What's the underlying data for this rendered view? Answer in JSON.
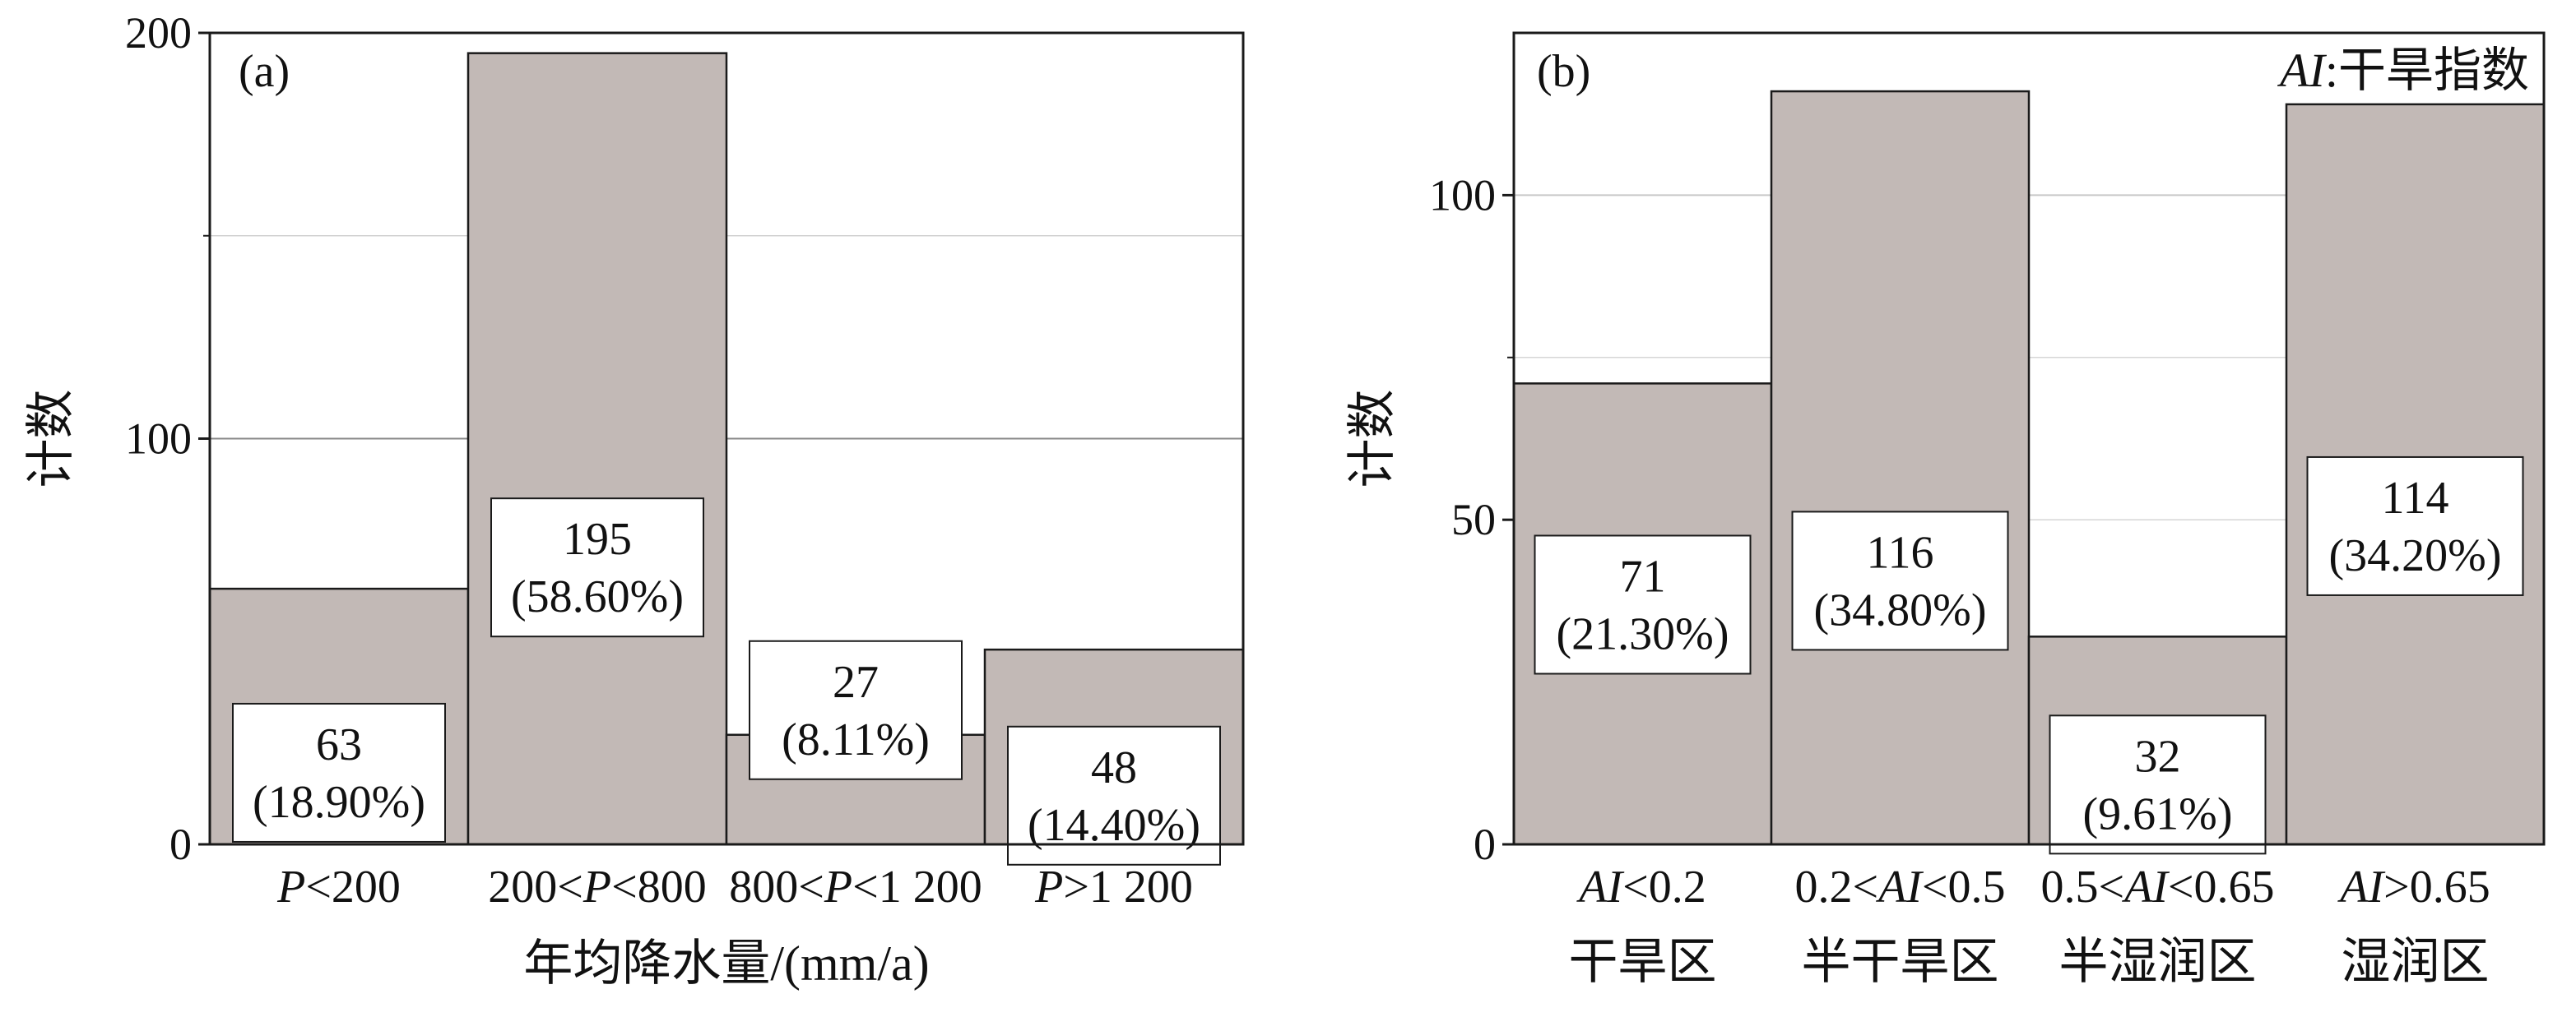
{
  "chart_data": [
    {
      "type": "bar",
      "panel_label": "(a)",
      "categories": [
        [
          {
            "t": "P",
            "i": true
          },
          {
            "t": "<200"
          }
        ],
        [
          {
            "t": "200<"
          },
          {
            "t": "P",
            "i": true
          },
          {
            "t": "<800"
          }
        ],
        [
          {
            "t": "800<"
          },
          {
            "t": "P",
            "i": true
          },
          {
            "t": "<1 200"
          }
        ],
        [
          {
            "t": "P",
            "i": true
          },
          {
            "t": ">1 200"
          }
        ]
      ],
      "category_sublabels": [],
      "values": [
        63,
        195,
        27,
        48
      ],
      "value_labels": [
        "63",
        "195",
        "27",
        "48"
      ],
      "percent_labels": [
        "(18.90%)",
        "(58.60%)",
        "(8.11%)",
        "(14.40%)"
      ],
      "xlabel": "年均降水量/(mm/a)",
      "ylabel": "计数",
      "ylim": [
        0,
        200
      ],
      "yticks": [
        0,
        100,
        200
      ],
      "gridlines": [
        100,
        150
      ],
      "annotation": [],
      "bar_color": "#c2b9b6"
    },
    {
      "type": "bar",
      "panel_label": "(b)",
      "categories": [
        [
          {
            "t": "AI",
            "i": true
          },
          {
            "t": "<0.2"
          }
        ],
        [
          {
            "t": "0.2<"
          },
          {
            "t": "AI",
            "i": true
          },
          {
            "t": "<0.5"
          }
        ],
        [
          {
            "t": "0.5<"
          },
          {
            "t": "AI",
            "i": true
          },
          {
            "t": "<0.65"
          }
        ],
        [
          {
            "t": "AI",
            "i": true
          },
          {
            "t": ">0.65"
          }
        ]
      ],
      "category_sublabels": [
        "干旱区",
        "半干旱区",
        "半湿润区",
        "湿润区"
      ],
      "values": [
        71,
        116,
        32,
        114
      ],
      "value_labels": [
        "71",
        "116",
        "32",
        "114"
      ],
      "percent_labels": [
        "(21.30%)",
        "(34.80%)",
        "(9.61%)",
        "(34.20%)"
      ],
      "xlabel": "",
      "ylabel": "计数",
      "ylim": [
        0,
        125
      ],
      "yticks": [
        0,
        50,
        100
      ],
      "gridlines": [
        50,
        75,
        100
      ],
      "annotation": [
        {
          "t": "AI",
          "i": true
        },
        {
          "t": ":干旱指数"
        }
      ],
      "bar_color": "#c2b9b6"
    }
  ]
}
